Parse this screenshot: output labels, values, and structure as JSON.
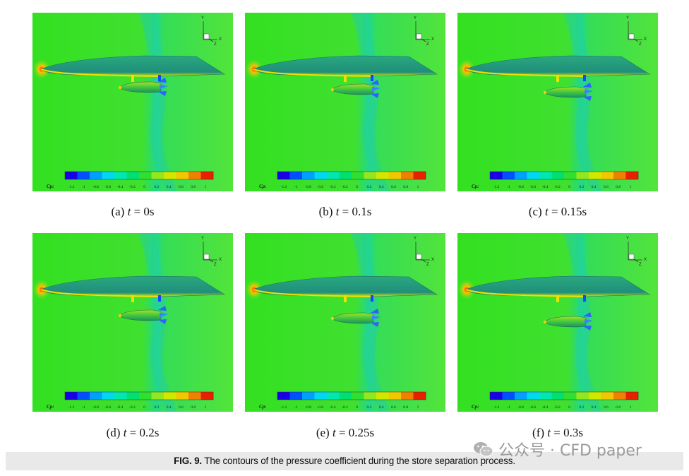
{
  "figure": {
    "label": "FIG. 9.",
    "caption": "The contours of the pressure coefficient during the store separation process."
  },
  "legend": {
    "title": "Cp:",
    "ticks": [
      "-1.2",
      "-1",
      "-0.8",
      "-0.6",
      "-0.4",
      "-0.2",
      "0",
      "0.2",
      "0.4",
      "0.6",
      "0.8",
      "1"
    ],
    "colors": [
      "#1a00e6",
      "#0050ff",
      "#00a0ff",
      "#00d8f0",
      "#00e8b0",
      "#00e070",
      "#30e030",
      "#90e820",
      "#d0e800",
      "#f0c800",
      "#f08000",
      "#e82000"
    ]
  },
  "axes_triad": {
    "y": "Y",
    "x": "X",
    "z": "Z"
  },
  "panels": [
    {
      "letter": "(a)",
      "var": "t",
      "value": "= 0s",
      "drop": 0
    },
    {
      "letter": "(b)",
      "var": "t",
      "value": "= 0.1s",
      "drop": 0.15
    },
    {
      "letter": "(c)",
      "var": "t",
      "value": "= 0.15s",
      "drop": 0.35
    },
    {
      "letter": "(d)",
      "var": "t",
      "value": "= 0.2s",
      "drop": 0.55
    },
    {
      "letter": "(e)",
      "var": "t",
      "value": "= 0.25s",
      "drop": 0.75
    },
    {
      "letter": "(f)",
      "var": "t",
      "value": "= 0.3s",
      "drop": 1.0
    }
  ],
  "watermark": {
    "text": "公众号 · CFD paper",
    "icon": "wechat-icon"
  }
}
